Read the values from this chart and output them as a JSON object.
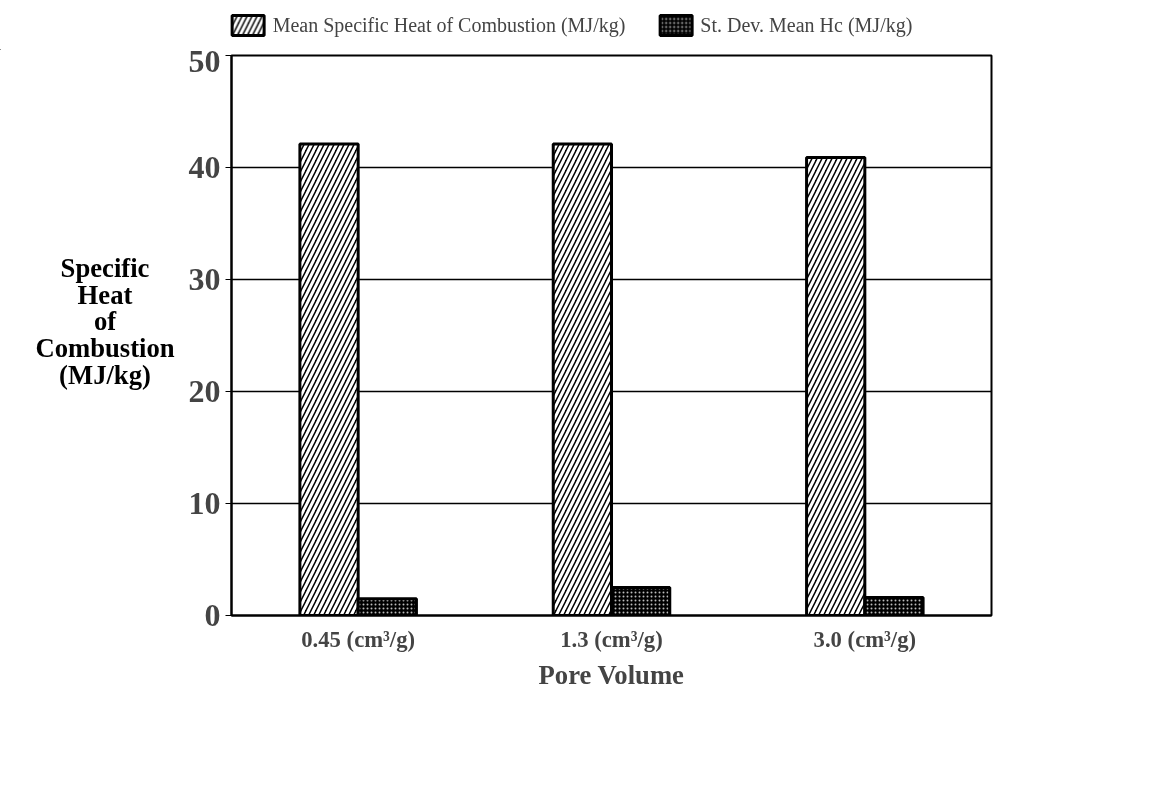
{
  "chart_data": {
    "type": "bar",
    "xlabel": "Pore Volume",
    "ylabel": "Specific\nHeat\nof\nCombustion\n(MJ/kg)",
    "categories": [
      "0.45 (cm³/g)",
      "1.3 (cm³/g)",
      "3.0 (cm³/g)"
    ],
    "series": [
      {
        "name": "Mean Specific Heat of Combustion (MJ/kg)",
        "color": "#000000",
        "values": [
          42.1,
          42.1,
          40.9
        ]
      },
      {
        "name": "St. Dev. Mean Hc (MJ/kg)",
        "color": "#000000",
        "values": [
          1.5,
          2.5,
          1.6
        ]
      }
    ],
    "ylim": [
      0,
      50
    ],
    "yticks": [
      0,
      10,
      20,
      30,
      40,
      50
    ],
    "grid": "y",
    "legend": "top"
  }
}
